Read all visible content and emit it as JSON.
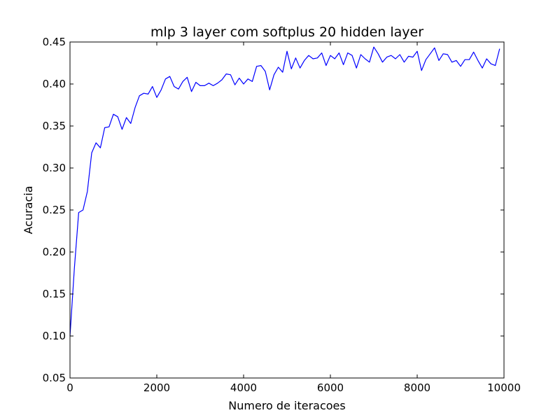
{
  "chart_data": {
    "type": "line",
    "title": "mlp 3 layer com softplus 20 hidden layer",
    "xlabel": "Numero de iteracoes",
    "ylabel": "Acuracia",
    "xlim": [
      0,
      10000
    ],
    "ylim": [
      0.05,
      0.45
    ],
    "xticks": [
      "0",
      "2000",
      "4000",
      "6000",
      "8000",
      "10000"
    ],
    "yticks": [
      "0.05",
      "0.10",
      "0.15",
      "0.20",
      "0.25",
      "0.30",
      "0.35",
      "0.40",
      "0.45"
    ],
    "grid": false,
    "line_color": "#0000ff",
    "series": [
      {
        "x": [
          0,
          100,
          200,
          300,
          400,
          500,
          600,
          700,
          800,
          900,
          1000,
          1100,
          1200,
          1300,
          1400,
          1500,
          1600,
          1700,
          1800,
          1900,
          2000,
          2100,
          2200,
          2300,
          2400,
          2500,
          2600,
          2700,
          2800,
          2900,
          3000,
          3100,
          3200,
          3300,
          3400,
          3500,
          3600,
          3700,
          3800,
          3900,
          4000,
          4100,
          4200,
          4300,
          4400,
          4500,
          4600,
          4700,
          4800,
          4900,
          5000,
          5100,
          5200,
          5300,
          5400,
          5500,
          5600,
          5700,
          5800,
          5900,
          6000,
          6100,
          6200,
          6300,
          6400,
          6500,
          6600,
          6700,
          6800,
          6900,
          7000,
          7100,
          7200,
          7300,
          7400,
          7500,
          7600,
          7700,
          7800,
          7900,
          8000,
          8100,
          8200,
          8300,
          8400,
          8500,
          8600,
          8700,
          8800,
          8900,
          9000,
          9100,
          9200,
          9300,
          9400,
          9500,
          9600,
          9700,
          9800,
          9900
        ],
        "y": [
          0.1,
          0.18,
          0.247,
          0.25,
          0.272,
          0.318,
          0.33,
          0.324,
          0.348,
          0.349,
          0.364,
          0.361,
          0.346,
          0.36,
          0.353,
          0.372,
          0.386,
          0.389,
          0.388,
          0.397,
          0.384,
          0.393,
          0.406,
          0.409,
          0.397,
          0.394,
          0.403,
          0.408,
          0.391,
          0.402,
          0.398,
          0.398,
          0.401,
          0.398,
          0.401,
          0.405,
          0.412,
          0.411,
          0.399,
          0.407,
          0.4,
          0.406,
          0.403,
          0.421,
          0.422,
          0.415,
          0.393,
          0.411,
          0.42,
          0.414,
          0.439,
          0.418,
          0.431,
          0.419,
          0.428,
          0.434,
          0.43,
          0.431,
          0.437,
          0.422,
          0.434,
          0.43,
          0.437,
          0.423,
          0.437,
          0.434,
          0.419,
          0.435,
          0.43,
          0.426,
          0.444,
          0.436,
          0.426,
          0.432,
          0.434,
          0.43,
          0.435,
          0.426,
          0.433,
          0.432,
          0.439,
          0.416,
          0.429,
          0.436,
          0.443,
          0.428,
          0.436,
          0.435,
          0.426,
          0.428,
          0.421,
          0.429,
          0.429,
          0.438,
          0.428,
          0.419,
          0.43,
          0.424,
          0.422,
          0.442
        ]
      }
    ]
  }
}
